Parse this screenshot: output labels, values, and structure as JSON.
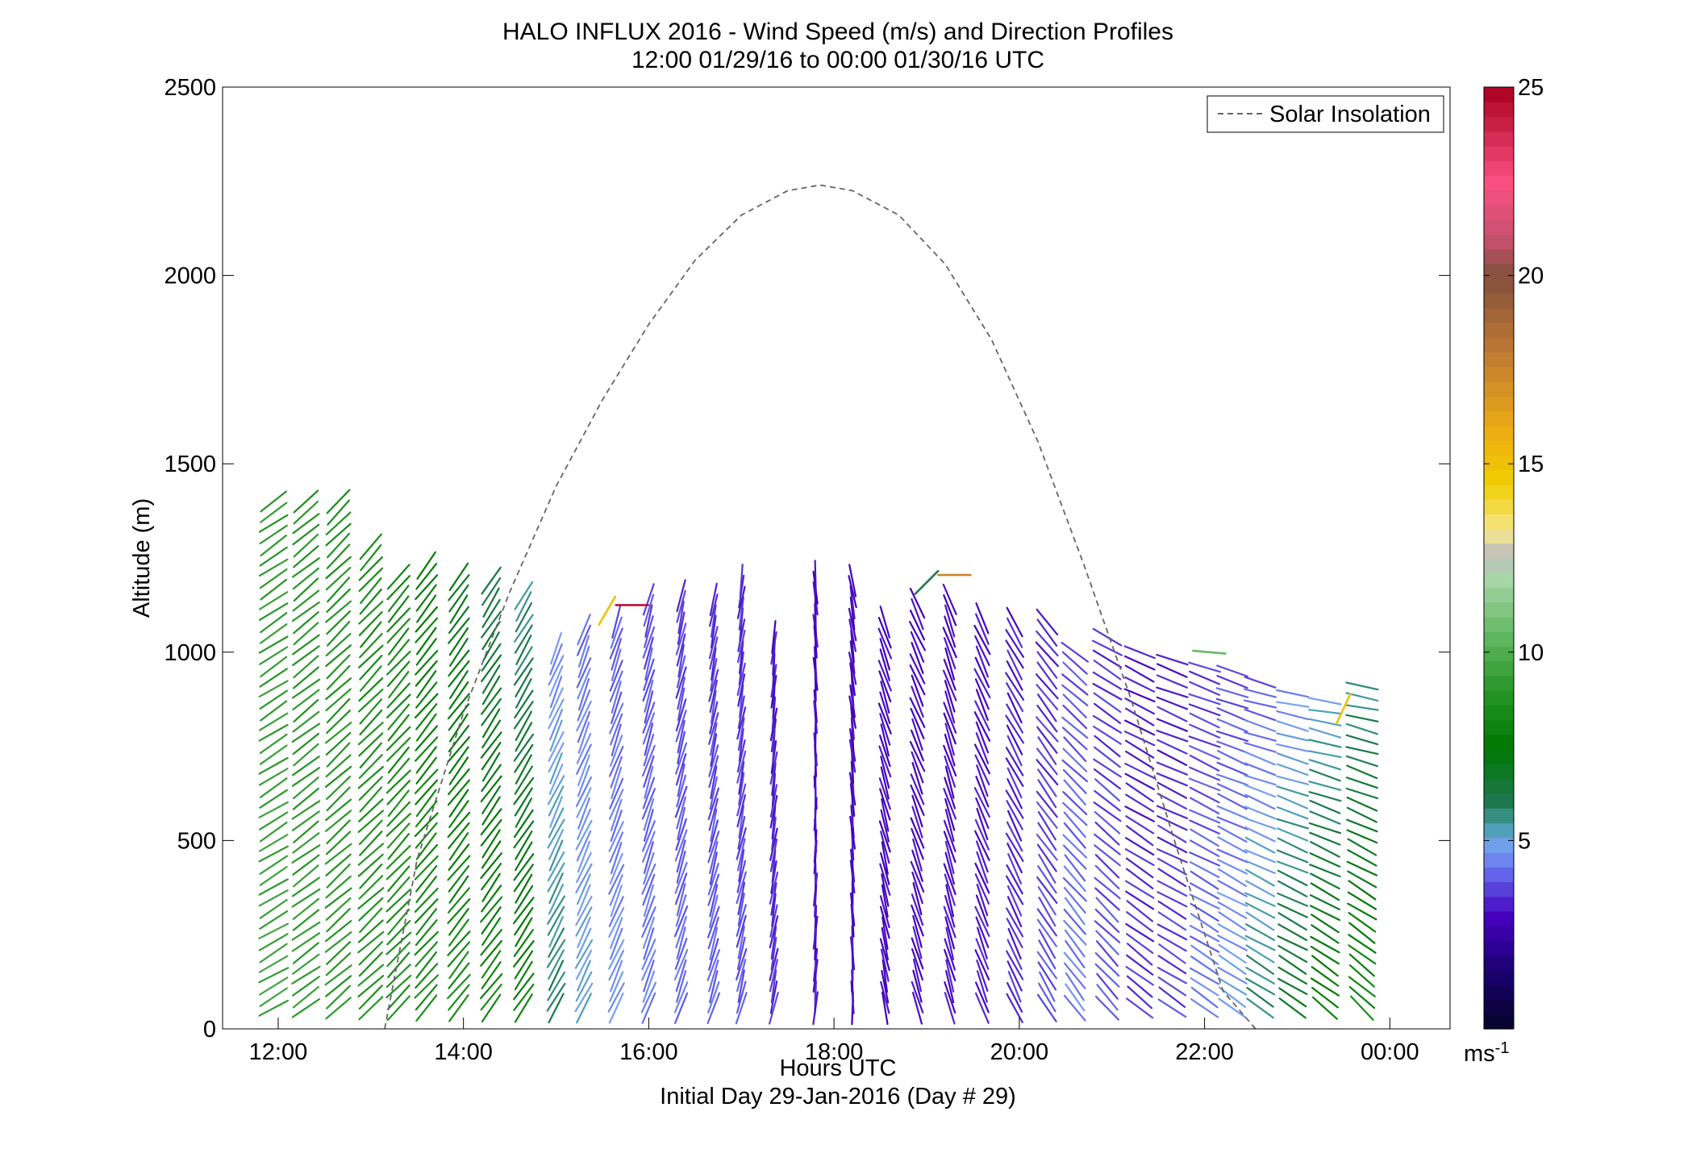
{
  "chart_data": {
    "type": "quiver",
    "title": "HALO INFLUX 2016 - Wind Speed (m/s) and Direction Profiles",
    "subtitle": "12:00 01/29/16 to 00:00 01/30/16  UTC",
    "xlabel": "Hours UTC",
    "xlabel2": "Initial Day 29-Jan-2016 (Day # 29)",
    "ylabel": "Altitude (m)",
    "xlim_hours": [
      11.4,
      24.65
    ],
    "ylim": [
      0,
      2500
    ],
    "x_ticks": [
      12,
      14,
      16,
      18,
      20,
      22,
      24
    ],
    "x_tick_labels": [
      "12:00",
      "14:00",
      "16:00",
      "18:00",
      "20:00",
      "22:00",
      "00:00"
    ],
    "y_ticks": [
      0,
      500,
      1000,
      1500,
      2000,
      2500
    ],
    "y_tick_labels": [
      "0",
      "500",
      "1000",
      "1500",
      "2000",
      "2500"
    ],
    "colorbar": {
      "range": [
        0,
        25
      ],
      "ticks": [
        5,
        10,
        15,
        20,
        25
      ],
      "tick_labels": [
        "5",
        "10",
        "15",
        "20",
        "25"
      ],
      "unit_label": "ms",
      "unit_exponent": "-1"
    },
    "legend": {
      "position": "top-right",
      "entries": [
        {
          "label": "Solar Insolation",
          "style": "dashed",
          "color": "#666666"
        }
      ]
    },
    "solar_insolation": {
      "x_hours": [
        13.15,
        13.5,
        14.0,
        14.5,
        15.0,
        15.5,
        16.0,
        16.5,
        17.0,
        17.5,
        17.85,
        18.2,
        18.7,
        19.2,
        19.7,
        20.2,
        20.7,
        21.2,
        21.7,
        22.2,
        22.55
      ],
      "y": [
        0,
        450,
        840,
        1160,
        1440,
        1670,
        1870,
        2040,
        2160,
        2225,
        2240,
        2225,
        2160,
        2030,
        1830,
        1560,
        1230,
        880,
        480,
        100,
        0
      ]
    },
    "profiles": [
      {
        "t": 11.95,
        "top": 1400,
        "dir": [
          -60,
          -55
        ],
        "speed": [
          9.5,
          9.0
        ]
      },
      {
        "t": 12.3,
        "top": 1400,
        "dir": [
          -55,
          -50
        ],
        "speed": [
          9.2,
          8.8
        ]
      },
      {
        "t": 12.65,
        "top": 1400,
        "dir": [
          -50,
          -45
        ],
        "speed": [
          9.0,
          8.6
        ]
      },
      {
        "t": 13.0,
        "top": 1280,
        "dir": [
          -48,
          -42
        ],
        "speed": [
          8.8,
          8.4
        ]
      },
      {
        "t": 13.3,
        "top": 1200,
        "dir": [
          -45,
          -40
        ],
        "speed": [
          8.7,
          8.2
        ]
      },
      {
        "t": 13.6,
        "top": 1230,
        "dir": [
          -42,
          -38
        ],
        "speed": [
          8.5,
          7.6
        ]
      },
      {
        "t": 13.95,
        "top": 1200,
        "dir": [
          -40,
          -35
        ],
        "speed": [
          8.6,
          6.8
        ]
      },
      {
        "t": 14.3,
        "top": 1190,
        "dir": [
          -38,
          -32
        ],
        "speed": [
          8.4,
          6.2
        ]
      },
      {
        "t": 14.65,
        "top": 1150,
        "dir": [
          -35,
          -30
        ],
        "speed": [
          8.2,
          5.6
        ]
      },
      {
        "t": 15.0,
        "top": 1010,
        "dir": [
          -30,
          -22
        ],
        "speed": [
          6.0,
          4.5
        ]
      },
      {
        "t": 15.3,
        "top": 1060,
        "dir": [
          -28,
          -20
        ],
        "speed": [
          5.2,
          4.2
        ]
      },
      {
        "t": 15.65,
        "top": 1080,
        "dir": [
          -25,
          -18
        ],
        "speed": [
          4.8,
          4.0
        ]
      },
      {
        "t": 16.0,
        "top": 1140,
        "dir": [
          -22,
          -15
        ],
        "speed": [
          4.5,
          3.8
        ]
      },
      {
        "t": 16.35,
        "top": 1150,
        "dir": [
          -20,
          -12
        ],
        "speed": [
          4.3,
          3.6
        ]
      },
      {
        "t": 16.7,
        "top": 1140,
        "dir": [
          -18,
          -10
        ],
        "speed": [
          4.2,
          3.5
        ]
      },
      {
        "t": 17.0,
        "top": 1190,
        "dir": [
          -15,
          -8
        ],
        "speed": [
          4.0,
          3.4
        ]
      },
      {
        "t": 17.35,
        "top": 1040,
        "dir": [
          -12,
          -5
        ],
        "speed": [
          3.6,
          3.2
        ]
      },
      {
        "t": 17.8,
        "top": 1200,
        "dir": [
          -5,
          5
        ],
        "speed": [
          3.3,
          3.0
        ]
      },
      {
        "t": 18.2,
        "top": 1190,
        "dir": [
          0,
          10
        ],
        "speed": [
          3.2,
          3.0
        ]
      },
      {
        "t": 18.55,
        "top": 1080,
        "dir": [
          10,
          20
        ],
        "speed": [
          3.0,
          3.0
        ]
      },
      {
        "t": 18.9,
        "top": 1130,
        "dir": [
          15,
          25
        ],
        "speed": [
          3.1,
          3.0
        ]
      },
      {
        "t": 19.25,
        "top": 1140,
        "dir": [
          15,
          20
        ],
        "speed": [
          3.2,
          3.0
        ]
      },
      {
        "t": 19.6,
        "top": 1090,
        "dir": [
          20,
          25
        ],
        "speed": [
          3.3,
          3.1
        ]
      },
      {
        "t": 19.95,
        "top": 1080,
        "dir": [
          25,
          30
        ],
        "speed": [
          3.5,
          3.3
        ]
      },
      {
        "t": 20.3,
        "top": 1080,
        "dir": [
          30,
          40
        ],
        "speed": [
          4.0,
          3.4
        ]
      },
      {
        "t": 20.6,
        "top": 1000,
        "dir": [
          35,
          50
        ],
        "speed": [
          4.5,
          3.8
        ]
      },
      {
        "t": 20.95,
        "top": 1040,
        "dir": [
          40,
          60
        ],
        "speed": [
          4.0,
          3.5
        ]
      },
      {
        "t": 21.3,
        "top": 1000,
        "dir": [
          50,
          65
        ],
        "speed": [
          3.6,
          3.2
        ]
      },
      {
        "t": 21.65,
        "top": 980,
        "dir": [
          55,
          70
        ],
        "speed": [
          3.8,
          3.3
        ]
      },
      {
        "t": 22.0,
        "top": 960,
        "dir": [
          55,
          70
        ],
        "speed": [
          4.5,
          3.6
        ]
      },
      {
        "t": 22.3,
        "top": 950,
        "dir": [
          55,
          72
        ],
        "speed": [
          5.0,
          3.8
        ]
      },
      {
        "t": 22.6,
        "top": 920,
        "dir": [
          55,
          75
        ],
        "speed": [
          6.0,
          4.0
        ]
      },
      {
        "t": 22.95,
        "top": 890,
        "dir": [
          55,
          78
        ],
        "speed": [
          7.0,
          4.5
        ]
      },
      {
        "t": 23.3,
        "top": 870,
        "dir": [
          50,
          80
        ],
        "speed": [
          8.0,
          5.0
        ]
      },
      {
        "t": 23.7,
        "top": 910,
        "dir": [
          45,
          80
        ],
        "speed": [
          8.5,
          5.5
        ]
      }
    ],
    "outliers": [
      {
        "t": 15.82,
        "alt": 1125,
        "dir": 90,
        "speed": 24.5
      },
      {
        "t": 15.55,
        "alt": 1110,
        "dir": -30,
        "speed": 15.0
      },
      {
        "t": 19.3,
        "alt": 1205,
        "dir": 90,
        "speed": 17.5
      },
      {
        "t": 19.0,
        "alt": 1185,
        "dir": -45,
        "speed": 6.0
      },
      {
        "t": 22.05,
        "alt": 1000,
        "dir": 85,
        "speed": 10.5
      },
      {
        "t": 23.5,
        "alt": 850,
        "dir": -25,
        "speed": 15.0
      }
    ]
  }
}
